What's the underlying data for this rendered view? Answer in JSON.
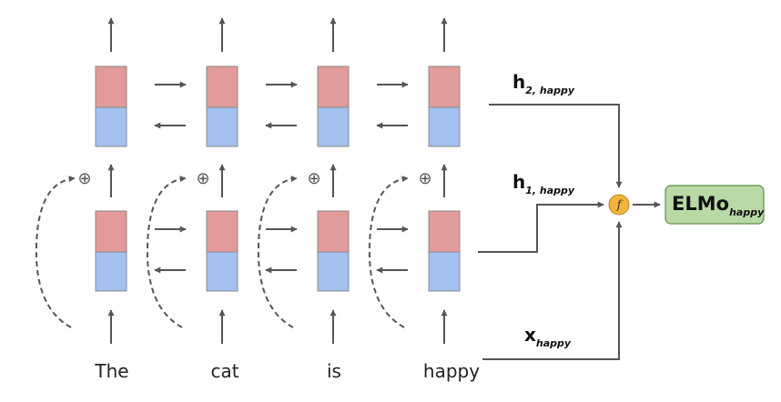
{
  "diagram": {
    "words": [
      "The",
      "cat",
      "is",
      "happy"
    ],
    "combine_symbol": "⊕",
    "labels": {
      "h2": {
        "main": "h",
        "sub": "2, happy"
      },
      "h1": {
        "main": "h",
        "sub": "1, happy"
      },
      "x": {
        "main": "x",
        "sub": "happy"
      }
    },
    "function_symbol": "f",
    "output": {
      "main": "ELMo",
      "sub": "happy"
    },
    "colors": {
      "forward_state": "#e39a9a",
      "backward_state": "#a4c0ee",
      "arrow": "#555555",
      "function_node": "#f2b43c",
      "output_fill": "#b8d9a6",
      "output_stroke": "#5e8f4b"
    }
  }
}
